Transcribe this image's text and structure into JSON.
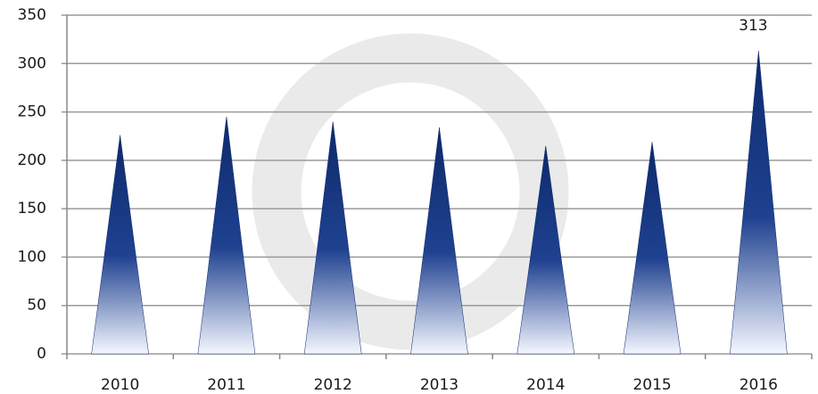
{
  "chart_data": {
    "type": "bar",
    "categories": [
      "2010",
      "2011",
      "2012",
      "2013",
      "2014",
      "2015",
      "2016"
    ],
    "values": [
      226,
      245,
      240,
      234,
      215,
      219,
      313
    ],
    "value_labels": [
      null,
      null,
      null,
      null,
      null,
      null,
      "313"
    ],
    "color": "#0d2a6b",
    "ylim": [
      0,
      350
    ],
    "yticks": [
      0,
      50,
      100,
      150,
      200,
      250,
      300,
      350
    ],
    "grid": true
  }
}
